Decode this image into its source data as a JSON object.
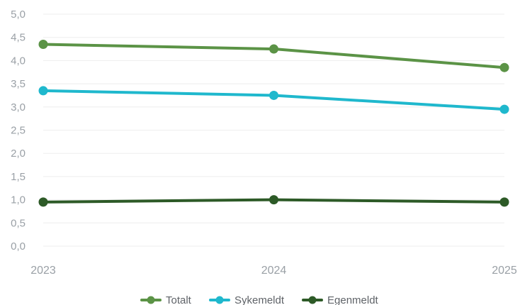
{
  "chart_data": {
    "type": "line",
    "x": [
      "2023",
      "2024",
      "2025"
    ],
    "y_ticks": [
      "0,0",
      "0,5",
      "1,0",
      "1,5",
      "2,0",
      "2,5",
      "3,0",
      "3,5",
      "4,0",
      "4,5",
      "5,0"
    ],
    "ylim": [
      0,
      5
    ],
    "grid": true,
    "legend_position": "bottom-center",
    "series": [
      {
        "name": "Totalt",
        "values": [
          4.35,
          4.25,
          3.85
        ],
        "color": "#5b9346"
      },
      {
        "name": "Sykemeldt",
        "values": [
          3.35,
          3.25,
          2.95
        ],
        "color": "#1fb8cd"
      },
      {
        "name": "Egenmeldt",
        "values": [
          0.95,
          1.0,
          0.95
        ],
        "color": "#2d5a27"
      }
    ]
  }
}
